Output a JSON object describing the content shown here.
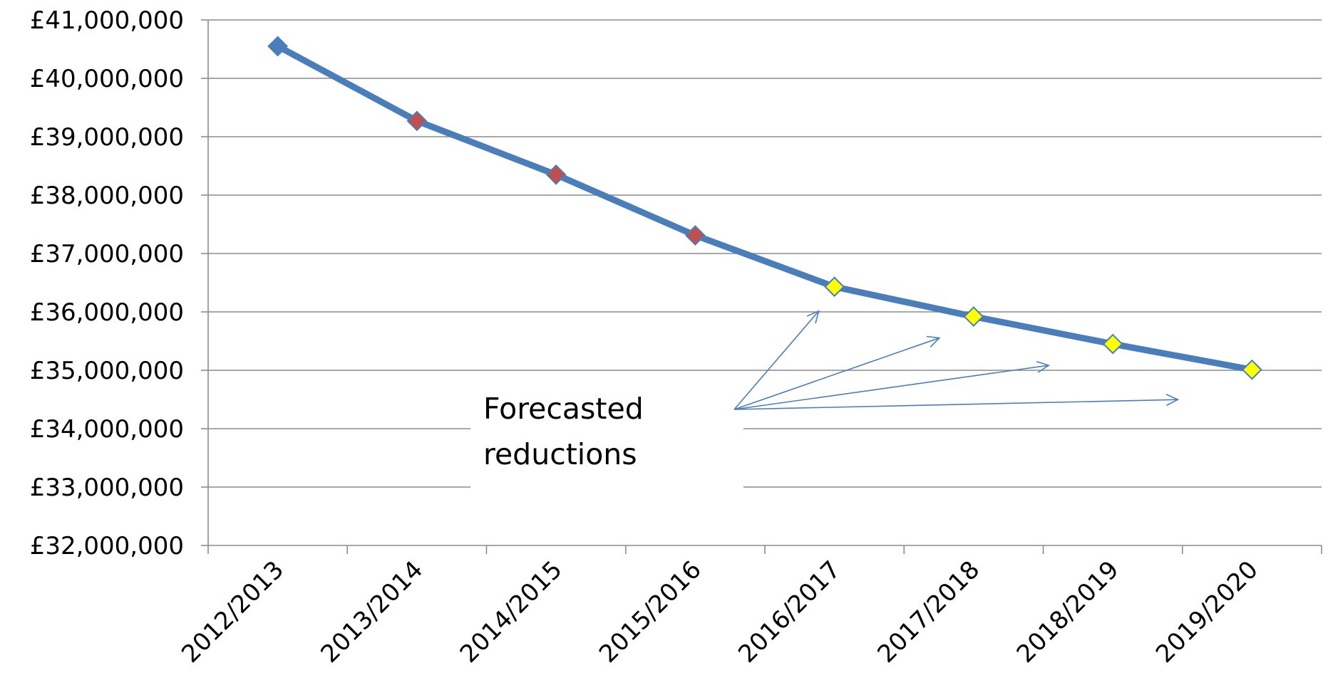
{
  "chart_data": {
    "type": "line",
    "title": "",
    "xlabel": "",
    "ylabel": "",
    "categories": [
      "2012/2013",
      "2013/2014",
      "2014/2015",
      "2015/2016",
      "2016/2017",
      "2017/2018",
      "2018/2019",
      "2019/2020"
    ],
    "series": [
      {
        "values": [
          40550000,
          39270000,
          38350000,
          37310000,
          36430000,
          35920000,
          35450000,
          35010000
        ],
        "point_colors": [
          "#4a7ebb",
          "#c0504d",
          "#c0504d",
          "#c0504d",
          "#ffff00",
          "#ffff00",
          "#ffff00",
          "#ffff00"
        ]
      }
    ],
    "ylim": [
      32000000,
      41000000
    ],
    "y_ticks": [
      "£32,000,000",
      "£33,000,000",
      "£34,000,000",
      "£35,000,000",
      "£36,000,000",
      "£37,000,000",
      "£38,000,000",
      "£39,000,000",
      "£40,000,000",
      "£41,000,000"
    ],
    "grid": true,
    "legend": "none",
    "annotation": {
      "lines": [
        "Forecasted",
        "reductions"
      ],
      "arrow_targets": [
        "2016/2017",
        "2017/2018",
        "2018/2019",
        "2019/2020"
      ]
    },
    "colors": {
      "line": "#4a7ebb",
      "grid": "#8c8c8c",
      "axis": "#8c8c8c",
      "arrow": "#4a7ebb",
      "actual_marker": "#c0504d",
      "forecast_marker": "#ffff00"
    }
  }
}
